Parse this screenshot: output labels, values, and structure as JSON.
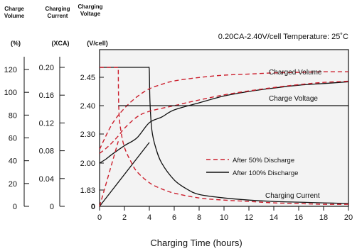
{
  "chart_data": {
    "type": "line",
    "annotation_top": "0.20CA-2.40V/cell   Temperature: 25˚C",
    "xlabel": "Charging Time (hours)",
    "xlim": [
      0,
      20
    ],
    "x_ticks": [
      "0",
      "2",
      "4",
      "6",
      "8",
      "10",
      "12",
      "14",
      "16",
      "18",
      "20"
    ],
    "axes": {
      "volume": {
        "header": [
          "Charge",
          "Volume"
        ],
        "unit": "(%)",
        "ticks": [
          "0",
          "20",
          "40",
          "60",
          "80",
          "100",
          "120"
        ]
      },
      "current": {
        "header": [
          "Charging",
          "Current"
        ],
        "unit": "(XCA)",
        "ticks": [
          "0",
          "0.04",
          "0.08",
          "0.12",
          "0.16",
          "0.20"
        ]
      },
      "voltage": {
        "header": [
          "Charging",
          "Voltage"
        ],
        "unit": "(V/cell)",
        "ticks": [
          "0",
          "1.83",
          "2.00",
          "2.30",
          "2.40",
          "2.45"
        ]
      }
    },
    "curve_labels": {
      "charged_volume": "Charged Volume",
      "charge_voltage": "Charge Voltage",
      "charging_current": "Charging Current"
    },
    "legend": {
      "position": "middle-right",
      "items": [
        {
          "label": "After 50% Discharge",
          "style": "dashed",
          "color": "#cc1f2d"
        },
        {
          "label": "After 100%  Discharge",
          "style": "solid",
          "color": "#111111"
        }
      ]
    },
    "colors": {
      "plot_bg": "#f3f3f3",
      "dashed": "#cc1f2d",
      "solid": "#111111"
    },
    "series": [
      {
        "group": "after_100",
        "measure": "voltage",
        "x": [
          0,
          0.5,
          1,
          2,
          3,
          4,
          5,
          6,
          8,
          10,
          12,
          14,
          16,
          18,
          20
        ],
        "y": [
          2.0,
          2.04,
          2.09,
          2.18,
          2.26,
          2.34,
          2.36,
          2.385,
          2.405,
          2.417,
          2.425,
          2.431,
          2.436,
          2.439,
          2.442
        ]
      },
      {
        "group": "after_100",
        "measure": "current",
        "x": [
          0,
          3.9,
          3.95,
          4,
          4.05,
          4.2,
          4.5,
          5,
          6,
          7,
          8,
          10,
          12,
          14,
          16,
          18,
          20
        ],
        "y": [
          0.2,
          0.2,
          0.2,
          0.195,
          0.15,
          0.11,
          0.085,
          0.062,
          0.038,
          0.025,
          0.017,
          0.012,
          0.009,
          0.007,
          0.006,
          0.005,
          0.004
        ]
      },
      {
        "group": "after_100",
        "measure": "volume",
        "x": [
          0,
          4
        ],
        "y": [
          0,
          56
        ]
      },
      {
        "group": "after_50",
        "measure": "voltage",
        "x": [
          0,
          0.5,
          1,
          1.5,
          2,
          3,
          4,
          6,
          8,
          10,
          12,
          14,
          16,
          18,
          20
        ],
        "y": [
          2.1,
          2.15,
          2.21,
          2.28,
          2.32,
          2.36,
          2.38,
          2.4,
          2.41,
          2.419,
          2.426,
          2.432,
          2.437,
          2.441,
          2.443
        ]
      },
      {
        "group": "after_50",
        "measure": "current",
        "x": [
          0,
          1.45,
          1.5,
          1.55,
          1.7,
          2,
          2.5,
          3,
          4,
          5,
          6,
          8,
          10,
          12,
          14,
          16,
          18,
          20
        ],
        "y": [
          0.2,
          0.2,
          0.2,
          0.14,
          0.11,
          0.085,
          0.065,
          0.05,
          0.034,
          0.025,
          0.019,
          0.012,
          0.009,
          0.007,
          0.005,
          0.004,
          0.003,
          0.003
        ]
      },
      {
        "group": "after_50",
        "measure": "volume",
        "x": [
          0,
          1.5
        ],
        "y": [
          0,
          57
        ]
      },
      {
        "group": "charged_volume",
        "measure": "volume",
        "x": [
          0,
          1,
          2,
          3,
          4,
          5,
          6,
          8,
          10,
          12,
          14,
          16,
          18,
          20
        ],
        "y": [
          50,
          72,
          86,
          96,
          103,
          107,
          110,
          113,
          115,
          116,
          117,
          117.5,
          118,
          118
        ]
      },
      {
        "group": "charge_voltage",
        "measure": "voltage",
        "x": [
          1.5,
          20
        ],
        "y": [
          2.4,
          2.4
        ]
      }
    ]
  }
}
